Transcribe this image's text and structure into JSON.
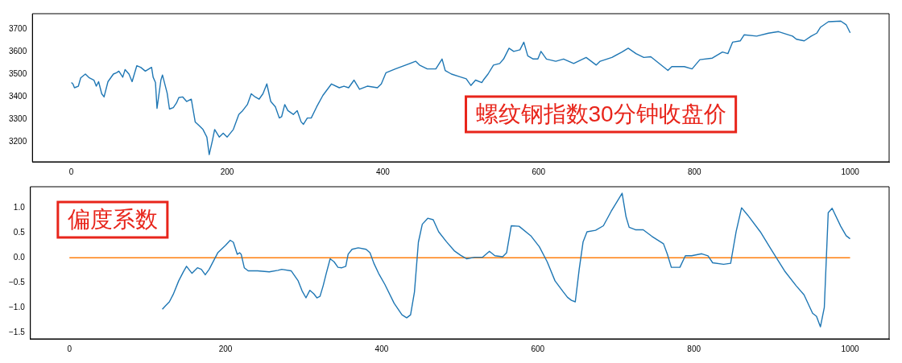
{
  "chart_data": [
    {
      "type": "line",
      "annotations": [
        "螺纹钢指数30分钟收盘价"
      ],
      "xlim": [
        -50,
        1050
      ],
      "xticks": [
        0,
        200,
        400,
        600,
        800,
        1000
      ],
      "ylim": [
        3110,
        3770
      ],
      "yticks": [
        3200,
        3300,
        3400,
        3500,
        3600,
        3700
      ],
      "grid": false,
      "legend": false,
      "marker": "none",
      "series": [
        {
          "color": "#1f77b4",
          "x": [
            0,
            2,
            4,
            9,
            12,
            18,
            23,
            29,
            32,
            35,
            39,
            42,
            47,
            54,
            58,
            61,
            66,
            69,
            74,
            78,
            84,
            89,
            95,
            103,
            105,
            108,
            110,
            115,
            117,
            123,
            126,
            131,
            135,
            138,
            143,
            148,
            154,
            159,
            164,
            169,
            174,
            177,
            181,
            184,
            190,
            195,
            200,
            208,
            215,
            220,
            226,
            231,
            236,
            241,
            246,
            251,
            256,
            262,
            267,
            270,
            274,
            278,
            285,
            290,
            295,
            298,
            303,
            308,
            315,
            323,
            334,
            344,
            350,
            356,
            363,
            370,
            380,
            393,
            398,
            404,
            416,
            442,
            447,
            457,
            468,
            476,
            480,
            488,
            498,
            507,
            513,
            519,
            527,
            529,
            535,
            542,
            550,
            555,
            562,
            568,
            576,
            581,
            586,
            593,
            599,
            603,
            610,
            622,
            632,
            645,
            661,
            674,
            679,
            694,
            707,
            715,
            725,
            735,
            744,
            766,
            771,
            787,
            797,
            807,
            823,
            836,
            843,
            849,
            859,
            864,
            880,
            895,
            908,
            926,
            931,
            941,
            950,
            957,
            962,
            972,
            988,
            995,
            1000
          ],
          "values": [
            3463,
            3457,
            3440,
            3447,
            3484,
            3501,
            3484,
            3474,
            3447,
            3467,
            3413,
            3399,
            3467,
            3501,
            3507,
            3514,
            3487,
            3521,
            3501,
            3467,
            3538,
            3531,
            3514,
            3531,
            3487,
            3463,
            3348,
            3474,
            3497,
            3416,
            3345,
            3352,
            3372,
            3396,
            3399,
            3379,
            3389,
            3288,
            3271,
            3254,
            3220,
            3142,
            3203,
            3254,
            3220,
            3237,
            3220,
            3254,
            3321,
            3338,
            3365,
            3413,
            3399,
            3389,
            3413,
            3457,
            3379,
            3355,
            3305,
            3311,
            3365,
            3338,
            3321,
            3338,
            3288,
            3277,
            3305,
            3305,
            3355,
            3406,
            3457,
            3440,
            3447,
            3440,
            3474,
            3433,
            3447,
            3440,
            3457,
            3507,
            3524,
            3558,
            3541,
            3524,
            3524,
            3568,
            3517,
            3501,
            3490,
            3480,
            3450,
            3474,
            3463,
            3474,
            3501,
            3541,
            3548,
            3568,
            3616,
            3602,
            3609,
            3643,
            3582,
            3568,
            3568,
            3602,
            3568,
            3558,
            3568,
            3548,
            3575,
            3541,
            3558,
            3575,
            3599,
            3616,
            3592,
            3575,
            3578,
            3517,
            3534,
            3534,
            3524,
            3565,
            3572,
            3599,
            3592,
            3643,
            3649,
            3676,
            3670,
            3683,
            3690,
            3670,
            3656,
            3649,
            3670,
            3683,
            3710,
            3734,
            3737,
            3720,
            3685
          ]
        }
      ]
    },
    {
      "type": "line",
      "annotations": [
        "偏度系数"
      ],
      "xlim": [
        -50,
        1050
      ],
      "xticks": [
        0,
        200,
        400,
        600,
        800,
        1000
      ],
      "ylim": [
        -1.62,
        1.42
      ],
      "yticks": [
        {
          "value": -1.5,
          "label": "−1.5"
        },
        {
          "value": -1,
          "label": "−1.0"
        },
        {
          "value": -0.5,
          "label": "−0.5"
        },
        {
          "value": 0,
          "label": "0.0"
        },
        {
          "value": 0.5,
          "label": "0.5"
        },
        {
          "value": 1,
          "label": "1.0"
        }
      ],
      "grid": false,
      "legend": false,
      "marker": "none",
      "series": [
        {
          "color": "#1f77b4",
          "x": [
            119,
            123,
            128,
            133,
            140,
            146,
            150,
            157,
            164,
            169,
            174,
            179,
            190,
            200,
            206,
            210,
            215,
            218,
            220,
            224,
            229,
            241,
            256,
            267,
            272,
            284,
            293,
            298,
            303,
            308,
            313,
            317,
            321,
            325,
            329,
            334,
            339,
            344,
            349,
            354,
            357,
            362,
            370,
            380,
            385,
            390,
            396,
            404,
            416,
            426,
            432,
            437,
            442,
            447,
            452,
            459,
            466,
            473,
            483,
            493,
            501,
            509,
            519,
            529,
            538,
            545,
            555,
            560,
            566,
            576,
            591,
            602,
            612,
            622,
            632,
            638,
            643,
            648,
            653,
            658,
            663,
            674,
            684,
            694,
            708,
            713,
            717,
            725,
            735,
            746,
            761,
            766,
            771,
            782,
            789,
            797,
            810,
            818,
            824,
            838,
            847,
            854,
            861,
            869,
            885,
            900,
            916,
            931,
            941,
            952,
            957,
            962,
            967,
            972,
            977,
            988,
            995,
            1000
          ],
          "values": [
            -1.03,
            -0.96,
            -0.88,
            -0.73,
            -0.46,
            -0.28,
            -0.17,
            -0.31,
            -0.2,
            -0.23,
            -0.34,
            -0.23,
            0.1,
            0.25,
            0.35,
            0.31,
            0.07,
            0.1,
            0.07,
            -0.2,
            -0.26,
            -0.26,
            -0.28,
            -0.25,
            -0.23,
            -0.26,
            -0.46,
            -0.66,
            -0.8,
            -0.65,
            -0.72,
            -0.8,
            -0.77,
            -0.56,
            -0.31,
            -0.02,
            -0.08,
            -0.19,
            -0.2,
            -0.17,
            0.07,
            0.17,
            0.2,
            0.17,
            0.1,
            -0.11,
            -0.31,
            -0.53,
            -0.91,
            -1.14,
            -1.2,
            -1.14,
            -0.68,
            0.31,
            0.67,
            0.79,
            0.76,
            0.52,
            0.32,
            0.14,
            0.05,
            -0.02,
            0.01,
            0.01,
            0.13,
            0.04,
            0.02,
            0.1,
            0.64,
            0.63,
            0.44,
            0.22,
            -0.08,
            -0.46,
            -0.67,
            -0.79,
            -0.85,
            -0.88,
            -0.23,
            0.32,
            0.52,
            0.55,
            0.64,
            0.93,
            1.29,
            0.82,
            0.61,
            0.56,
            0.56,
            0.43,
            0.28,
            0.07,
            -0.19,
            -0.19,
            0.04,
            0.04,
            0.08,
            0.04,
            -0.1,
            -0.13,
            -0.11,
            0.52,
            1.0,
            0.85,
            0.52,
            0.14,
            -0.26,
            -0.56,
            -0.74,
            -1.11,
            -1.17,
            -1.38,
            -0.99,
            0.9,
            0.99,
            0.63,
            0.44,
            0.38
          ]
        },
        {
          "color": "#ff7f0e",
          "x": [
            0,
            1000
          ],
          "values": [
            0,
            0
          ]
        }
      ]
    }
  ]
}
